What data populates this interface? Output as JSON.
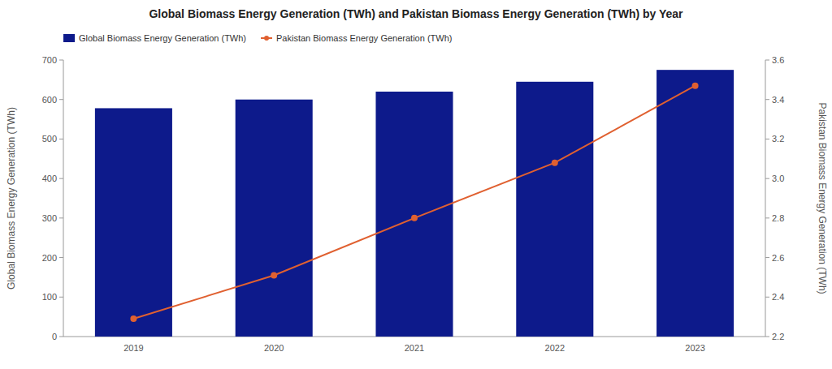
{
  "chart_data": {
    "type": "bar",
    "title": "Global Biomass Energy Generation (TWh) and Pakistan Biomass Energy Generation (TWh) by Year",
    "categories": [
      "2019",
      "2020",
      "2021",
      "2022",
      "2023"
    ],
    "series": [
      {
        "name": "Global Biomass Energy Generation (TWh)",
        "type": "bar",
        "color": "#0d1a8b",
        "values": [
          578,
          600,
          620,
          645,
          675
        ]
      },
      {
        "name": "Pakistan Biomass Energy Generation (TWh)",
        "type": "line",
        "color": "#e06030",
        "marker": "circle",
        "axis": "y2",
        "values": [
          2.29,
          2.51,
          2.8,
          3.08,
          3.47
        ]
      }
    ],
    "ylabel": "Global Biomass Energy Generation (TWh)",
    "y2label": "Pakistan Biomass Energy Generation (TWh)",
    "ylim": [
      0,
      700
    ],
    "yticks": [
      0,
      100,
      200,
      300,
      400,
      500,
      600,
      700
    ],
    "y2lim": [
      2.2,
      3.6
    ],
    "y2ticks": [
      2.2,
      2.4,
      2.6,
      2.8,
      {
        "value": 3.0,
        "label": "3.0"
      },
      3.2,
      3.4,
      3.6
    ],
    "grid": false,
    "legend": "top"
  }
}
